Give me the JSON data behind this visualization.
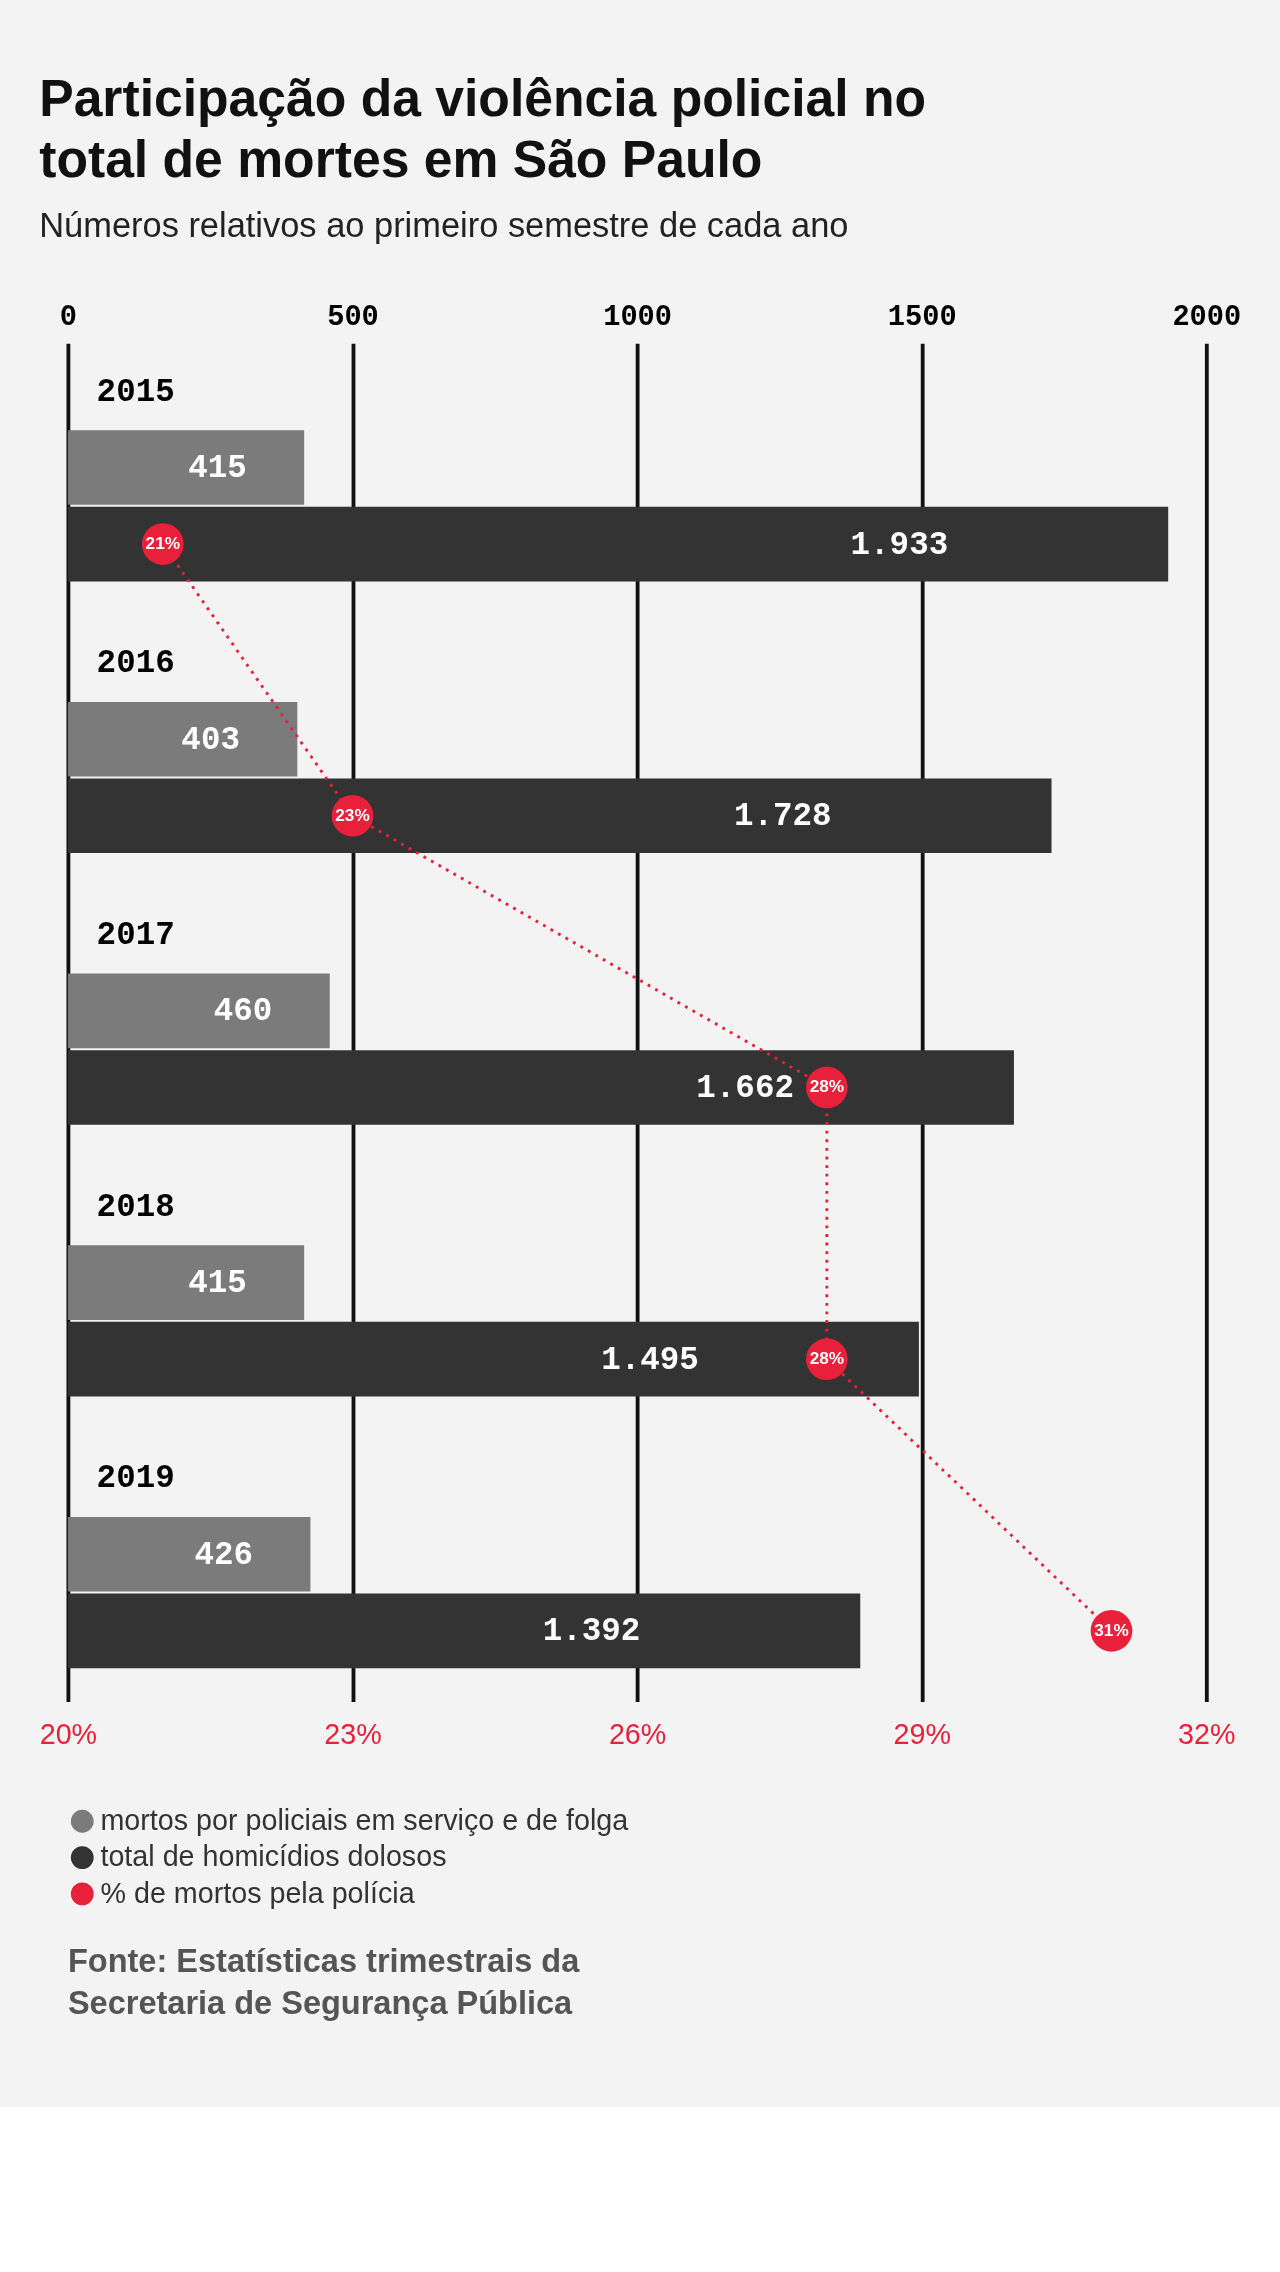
{
  "chart_data": {
    "type": "bar",
    "orientation": "horizontal",
    "title": "Participação da violência policial no total de mortes em São Paulo",
    "subtitle": "Números relativos ao primeiro semestre de cada ano",
    "categories": [
      "2015",
      "2016",
      "2017",
      "2018",
      "2019"
    ],
    "series": [
      {
        "name": "mortos por policiais em serviço e de folga",
        "color": "#7b7b7b",
        "values": [
          415,
          403,
          460,
          415,
          426
        ],
        "value_labels": [
          "415",
          "403",
          "460",
          "415",
          "426"
        ]
      },
      {
        "name": "total de homicídios dolosos",
        "color": "#333333",
        "values": [
          1933,
          1728,
          1662,
          1495,
          1392
        ],
        "value_labels": [
          "1.933",
          "1.728",
          "1.662",
          "1.495",
          "1.392"
        ]
      },
      {
        "name": "% de mortos pela polícia",
        "type": "line",
        "axis": "x2",
        "color": "#e8203a",
        "marker": "circle",
        "line_style": "dotted",
        "values": [
          21,
          23,
          28,
          28,
          31
        ],
        "value_labels": [
          "21%",
          "23%",
          "28%",
          "28%",
          "31%"
        ]
      }
    ],
    "xlim": [
      0,
      2000
    ],
    "xticks": [
      0,
      500,
      1000,
      1500,
      2000
    ],
    "x2lim": [
      20,
      32
    ],
    "x2ticks": [
      {
        "value": 20,
        "label": "20%"
      },
      {
        "value": 23,
        "label": "23%"
      },
      {
        "value": 26,
        "label": "26%"
      },
      {
        "value": 29,
        "label": "29%"
      },
      {
        "value": 32,
        "label": "32%"
      }
    ],
    "grid": "x",
    "legend": "bottom left",
    "annotations": [
      "Fonte: Estatísticas trimestrais da Secretaria de Segurança Pública"
    ]
  }
}
